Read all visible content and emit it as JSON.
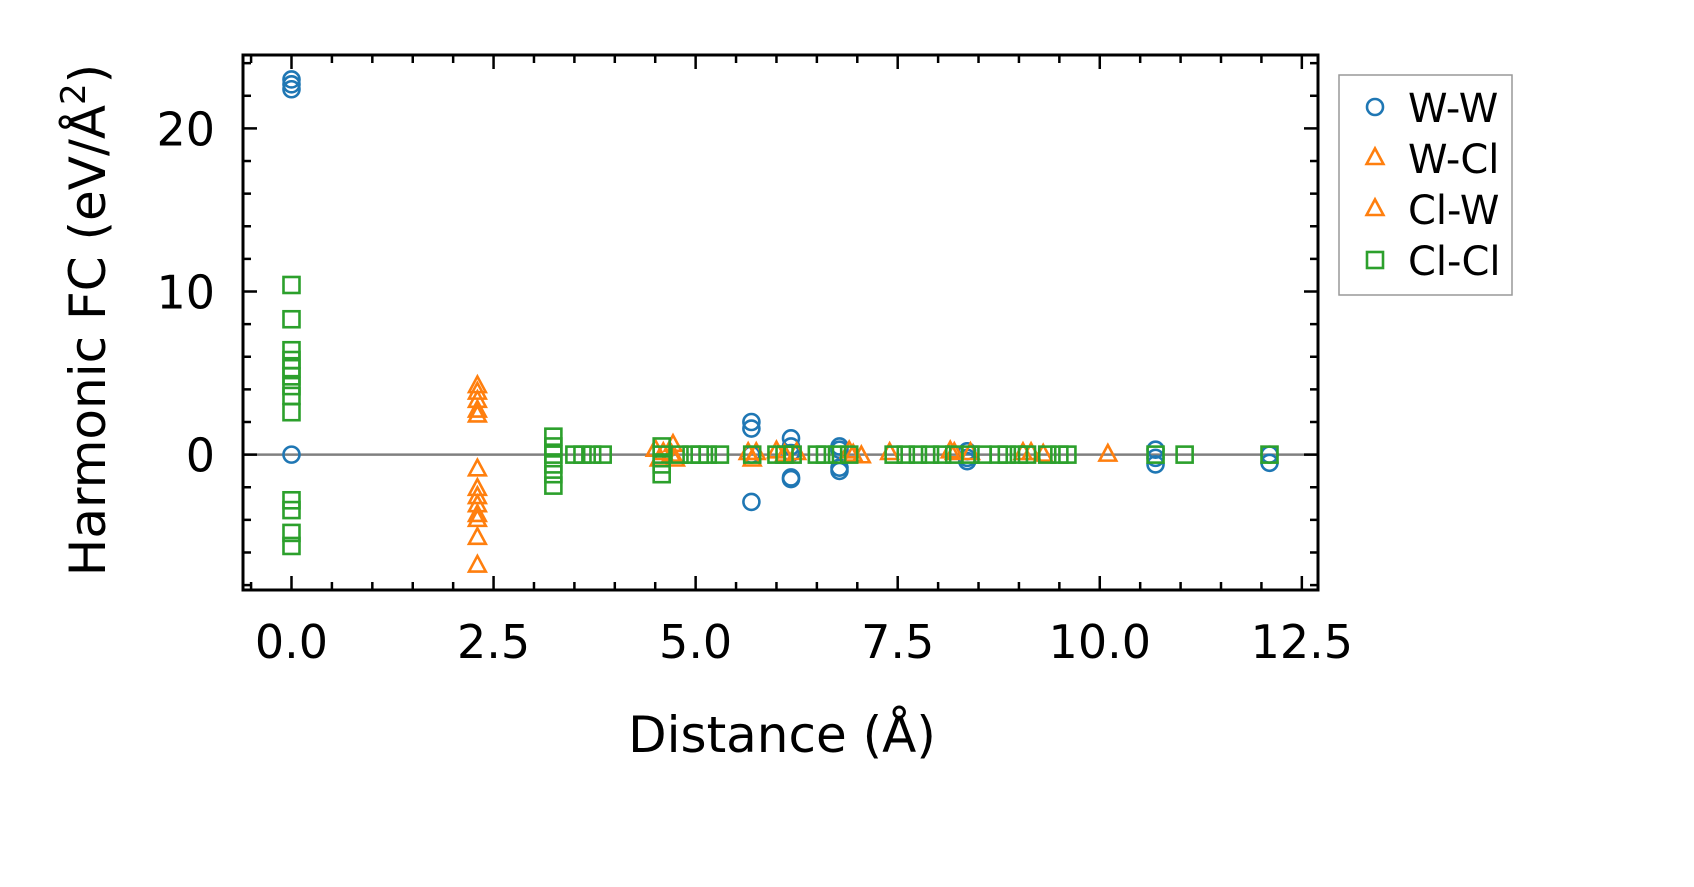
{
  "chart_data": {
    "type": "scatter",
    "title": "",
    "xlabel": "Distance (Å)",
    "ylabel": "Harmonic FC (eV/Å²)",
    "ylabel_main": "Harmonic FC (eV/Å",
    "ylabel_sup": "2",
    "ylabel_end": ")",
    "xlim": [
      -0.6,
      12.7
    ],
    "ylim": [
      -8.3,
      24.5
    ],
    "xticks": [
      0.0,
      2.5,
      5.0,
      7.5,
      10.0,
      12.5
    ],
    "xtick_labels": [
      "0.0",
      "2.5",
      "5.0",
      "7.5",
      "10.0",
      "12.5"
    ],
    "yticks": [
      0,
      10,
      20
    ],
    "ytick_labels": [
      "0",
      "10",
      "20"
    ],
    "x_minor_step": 0.5,
    "y_minor_step": 2,
    "grid": false,
    "zero_line": true,
    "legend_position": "outside-right-top",
    "series": [
      {
        "name": "W-W",
        "marker": "circle",
        "color": "#1f77b4",
        "points": [
          [
            0,
            23.0
          ],
          [
            0,
            22.7
          ],
          [
            0,
            22.4
          ],
          [
            0,
            0.0
          ],
          [
            5.69,
            2.0
          ],
          [
            5.69,
            1.6
          ],
          [
            5.69,
            0.0
          ],
          [
            5.69,
            -2.9
          ],
          [
            6.18,
            1.0
          ],
          [
            6.18,
            0.5
          ],
          [
            6.18,
            0.1
          ],
          [
            6.18,
            -1.4
          ],
          [
            6.18,
            -1.5
          ],
          [
            6.78,
            0.5
          ],
          [
            6.78,
            0.3
          ],
          [
            6.78,
            -0.8
          ],
          [
            6.78,
            -1.0
          ],
          [
            8.36,
            0.2
          ],
          [
            8.36,
            -0.2
          ],
          [
            8.36,
            -0.4
          ],
          [
            10.69,
            0.3
          ],
          [
            10.69,
            -0.2
          ],
          [
            10.69,
            -0.6
          ],
          [
            12.1,
            0.0
          ],
          [
            12.1,
            -0.5
          ]
        ]
      },
      {
        "name": "W-Cl",
        "marker": "triangle",
        "color": "#ff7f0e",
        "points": [
          [
            2.3,
            4.2
          ],
          [
            2.3,
            3.3
          ],
          [
            2.3,
            2.4
          ],
          [
            2.3,
            -0.9
          ],
          [
            2.3,
            -2.6
          ],
          [
            2.3,
            -3.7
          ],
          [
            2.3,
            -5.1
          ],
          [
            2.3,
            -6.8
          ],
          [
            4.5,
            0.3
          ],
          [
            4.55,
            -0.3
          ],
          [
            4.72,
            0.6
          ],
          [
            4.75,
            -0.3
          ],
          [
            5.65,
            0.1
          ],
          [
            5.7,
            -0.3
          ],
          [
            6.0,
            0.2
          ],
          [
            6.25,
            0.1
          ],
          [
            6.9,
            0.2
          ],
          [
            7.05,
            -0.1
          ],
          [
            7.4,
            0.1
          ],
          [
            8.15,
            0.2
          ],
          [
            8.4,
            0.1
          ],
          [
            9.05,
            0.1
          ],
          [
            9.3,
            0.0
          ],
          [
            10.1,
            0.0
          ]
        ]
      },
      {
        "name": "Cl-W",
        "marker": "triangle",
        "color": "#ff7f0e",
        "points": [
          [
            2.3,
            3.8
          ],
          [
            2.3,
            2.7
          ],
          [
            2.3,
            -2.1
          ],
          [
            2.3,
            -3.1
          ],
          [
            2.3,
            -4.0
          ],
          [
            4.6,
            0.1
          ],
          [
            4.7,
            0.0
          ],
          [
            5.75,
            0.1
          ],
          [
            6.1,
            0.0
          ],
          [
            6.95,
            0.0
          ],
          [
            8.2,
            0.1
          ],
          [
            9.15,
            0.1
          ]
        ]
      },
      {
        "name": "Cl-Cl",
        "marker": "square",
        "color": "#2ca02c",
        "points": [
          [
            0,
            10.4
          ],
          [
            0,
            8.3
          ],
          [
            0,
            6.4
          ],
          [
            0,
            5.8
          ],
          [
            0,
            5.3
          ],
          [
            0,
            4.8
          ],
          [
            0,
            4.2
          ],
          [
            0,
            3.6
          ],
          [
            0,
            2.6
          ],
          [
            0,
            -2.8
          ],
          [
            0,
            -3.4
          ],
          [
            0,
            -4.8
          ],
          [
            0,
            -5.6
          ],
          [
            3.24,
            1.1
          ],
          [
            3.24,
            0.5
          ],
          [
            3.24,
            0.0
          ],
          [
            3.24,
            -0.6
          ],
          [
            3.24,
            -1.2
          ],
          [
            3.24,
            -1.9
          ],
          [
            3.5,
            0.0
          ],
          [
            3.6,
            0.0
          ],
          [
            3.72,
            0.0
          ],
          [
            3.85,
            0.0
          ],
          [
            4.58,
            0.5
          ],
          [
            4.58,
            0.0
          ],
          [
            4.58,
            -0.6
          ],
          [
            4.58,
            -1.2
          ],
          [
            4.8,
            0.0
          ],
          [
            4.95,
            0.0
          ],
          [
            5.05,
            0.0
          ],
          [
            5.15,
            0.0
          ],
          [
            5.3,
            0.0
          ],
          [
            5.7,
            0.0
          ],
          [
            6.0,
            0.0
          ],
          [
            6.1,
            0.0
          ],
          [
            6.2,
            0.0
          ],
          [
            6.5,
            0.0
          ],
          [
            6.6,
            0.0
          ],
          [
            6.75,
            0.0
          ],
          [
            6.9,
            0.0
          ],
          [
            7.45,
            0.0
          ],
          [
            7.6,
            0.0
          ],
          [
            7.75,
            0.0
          ],
          [
            7.9,
            0.0
          ],
          [
            8.05,
            0.0
          ],
          [
            8.2,
            0.0
          ],
          [
            8.4,
            0.0
          ],
          [
            8.55,
            0.0
          ],
          [
            8.75,
            0.0
          ],
          [
            8.85,
            0.0
          ],
          [
            9.0,
            0.0
          ],
          [
            9.1,
            0.0
          ],
          [
            9.35,
            0.0
          ],
          [
            9.5,
            0.0
          ],
          [
            9.6,
            0.0
          ],
          [
            10.69,
            0.0
          ],
          [
            11.05,
            0.0
          ],
          [
            12.1,
            0.0
          ]
        ]
      }
    ]
  }
}
